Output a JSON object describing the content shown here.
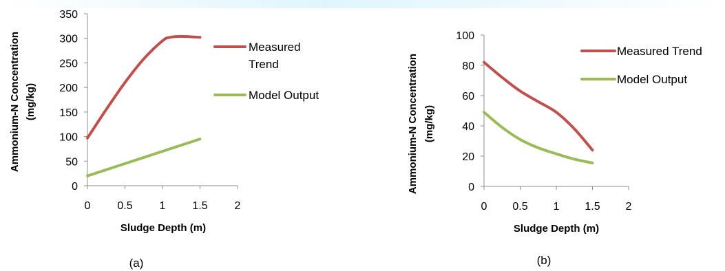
{
  "chart_data": [
    {
      "type": "line",
      "caption": "(a)",
      "xlabel": "Sludge Depth (m)",
      "ylabel_lines": [
        "Ammonium-N Concentration",
        "(mg/kg)"
      ],
      "xlim": [
        0,
        2
      ],
      "ylim": [
        0,
        350
      ],
      "xticks": [
        "0",
        "0.5",
        "1",
        "1.5",
        "2"
      ],
      "yticks": [
        "0",
        "50",
        "100",
        "150",
        "200",
        "250",
        "300",
        "350"
      ],
      "grid": false,
      "legend_position": "right",
      "series": [
        {
          "name_lines": [
            "Measured",
            "Trend"
          ],
          "color": "#c0504d",
          "x": [
            0,
            0.25,
            0.5,
            0.75,
            1.0,
            1.1,
            1.25,
            1.5
          ],
          "y": [
            97,
            155,
            210,
            258,
            295,
            302,
            304,
            302
          ]
        },
        {
          "name_lines": [
            "Model Output"
          ],
          "color": "#9bbb59",
          "x": [
            0,
            0.5,
            1.0,
            1.5
          ],
          "y": [
            20,
            45,
            70,
            95
          ]
        }
      ]
    },
    {
      "type": "line",
      "caption": "(b)",
      "xlabel": "Sludge Depth (m)",
      "ylabel_lines": [
        "Ammonium-N Concentration",
        "(mg/kg)"
      ],
      "xlim": [
        0,
        2
      ],
      "ylim": [
        0,
        100
      ],
      "xticks": [
        "0",
        "0.5",
        "1",
        "1.5",
        "2"
      ],
      "yticks": [
        "0",
        "20",
        "40",
        "60",
        "80",
        "100"
      ],
      "grid": false,
      "legend_position": "top-right",
      "series": [
        {
          "name_lines": [
            "Measured Trend"
          ],
          "color": "#c0504d",
          "x": [
            0,
            0.25,
            0.5,
            0.75,
            1.0,
            1.25,
            1.5
          ],
          "y": [
            82,
            72,
            63,
            56,
            49,
            38,
            24
          ]
        },
        {
          "name_lines": [
            "Model Output"
          ],
          "color": "#9bbb59",
          "x": [
            0,
            0.25,
            0.5,
            0.75,
            1.0,
            1.25,
            1.5
          ],
          "y": [
            49,
            39,
            31,
            25.5,
            21.5,
            18,
            15.5
          ]
        }
      ]
    }
  ]
}
